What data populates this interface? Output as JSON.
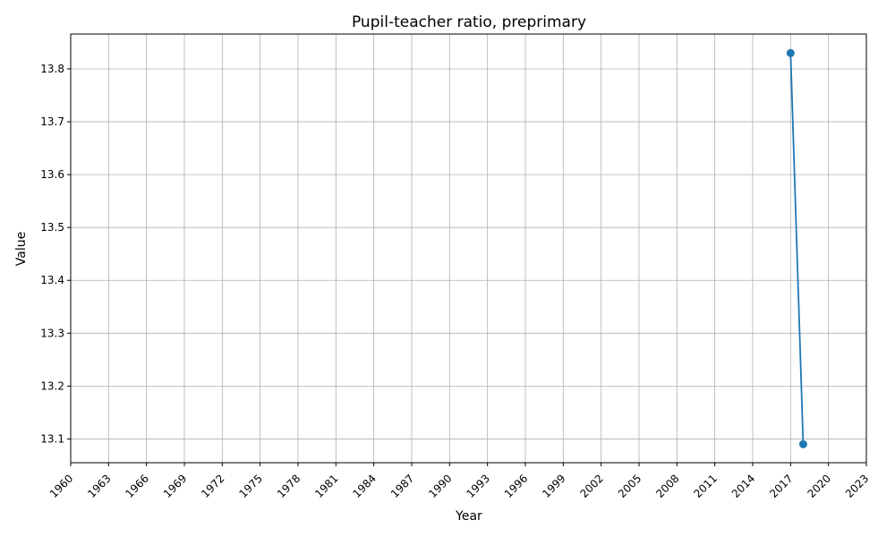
{
  "chart_data": {
    "type": "line",
    "title": "Pupil-teacher ratio, preprimary",
    "xlabel": "Year",
    "ylabel": "Value",
    "xlim": [
      1960,
      2023
    ],
    "ylim": [
      13.055,
      13.866
    ],
    "x_ticks": [
      "1960",
      "1963",
      "1966",
      "1969",
      "1972",
      "1975",
      "1978",
      "1981",
      "1984",
      "1987",
      "1990",
      "1993",
      "1996",
      "1999",
      "2002",
      "2005",
      "2008",
      "2011",
      "2014",
      "2017",
      "2020",
      "2023"
    ],
    "y_ticks": [
      "13.1",
      "13.2",
      "13.3",
      "13.4",
      "13.5",
      "13.6",
      "13.7",
      "13.8"
    ],
    "grid": true,
    "series": [
      {
        "color": "#1f77b4",
        "x": [
          2017,
          2018
        ],
        "y": [
          13.83,
          13.09
        ]
      }
    ]
  }
}
